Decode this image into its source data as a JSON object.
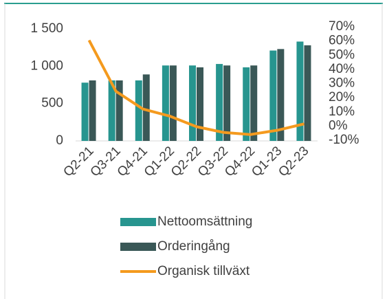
{
  "chart_data": {
    "type": "bar_line",
    "categories": [
      "Q2-21",
      "Q3-21",
      "Q4-21",
      "Q1-22",
      "Q2-22",
      "Q3-22",
      "Q4-22",
      "Q1-23",
      "Q2-23"
    ],
    "series": [
      {
        "name": "Nettoomsättning",
        "color": "#27958f",
        "type": "bar",
        "values": [
          780,
          810,
          810,
          1010,
          1010,
          1030,
          985,
          1210,
          1330
        ]
      },
      {
        "name": "Orderingång",
        "color": "#3a5857",
        "type": "bar",
        "values": [
          810,
          810,
          890,
          1010,
          985,
          1010,
          1010,
          1230,
          1280
        ]
      },
      {
        "name": "Organisk tillväxt",
        "color": "#f49a1e",
        "type": "line",
        "axis": "y2",
        "values": [
          61,
          25,
          12.5,
          7.5,
          0,
          -4,
          -5.5,
          -2.5,
          2
        ]
      }
    ],
    "ylim": [
      0,
      1500
    ],
    "yticks": [
      0,
      500,
      {
        "value": 1000,
        "label": "1 000"
      },
      {
        "value": 1500,
        "label": "1 500"
      }
    ],
    "y2lim": [
      -10,
      70
    ],
    "y2ticks": [
      {
        "value": -10,
        "label": "-10%"
      },
      {
        "value": 0,
        "label": "0%"
      },
      {
        "value": 10,
        "label": "10%"
      },
      {
        "value": 20,
        "label": "20%"
      },
      {
        "value": 30,
        "label": "30%"
      },
      {
        "value": 40,
        "label": "40%"
      },
      {
        "value": 50,
        "label": "50%"
      },
      {
        "value": 60,
        "label": "60%"
      },
      {
        "value": 70,
        "label": "70%"
      }
    ],
    "legend": "bottom"
  }
}
